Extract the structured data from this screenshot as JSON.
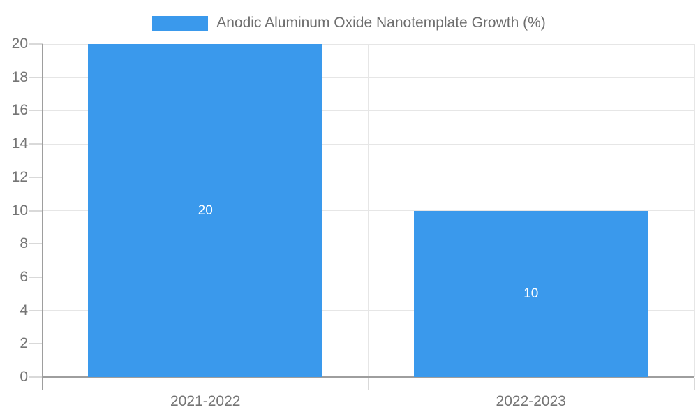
{
  "legend": {
    "label": "Anodic Aluminum Oxide Nanotemplate Growth (%)"
  },
  "colors": {
    "bar": "#3a99ec",
    "axis": "#9e9e9e",
    "grid": "#e6e6e6",
    "tick": "#d9d9d9",
    "axis_label_text": "#757575",
    "legend_text": "#6e6e6e",
    "data_label_text": "#ffffff",
    "background": "#ffffff"
  },
  "chart_data": {
    "type": "bar",
    "title": "",
    "categories": [
      "2021-2022",
      "2022-2023"
    ],
    "series": [
      {
        "name": "Anodic Aluminum Oxide Nanotemplate Growth (%)",
        "values": [
          20,
          10
        ]
      }
    ],
    "data_labels": [
      "20",
      "10"
    ],
    "xlabel": "",
    "ylabel": "",
    "ylim": [
      0,
      20
    ],
    "ytick_step": 2,
    "yticks": [
      0,
      2,
      4,
      6,
      8,
      10,
      12,
      14,
      16,
      18,
      20
    ],
    "grid": true,
    "legend_position": "top-center",
    "bar_label_position": "center"
  }
}
